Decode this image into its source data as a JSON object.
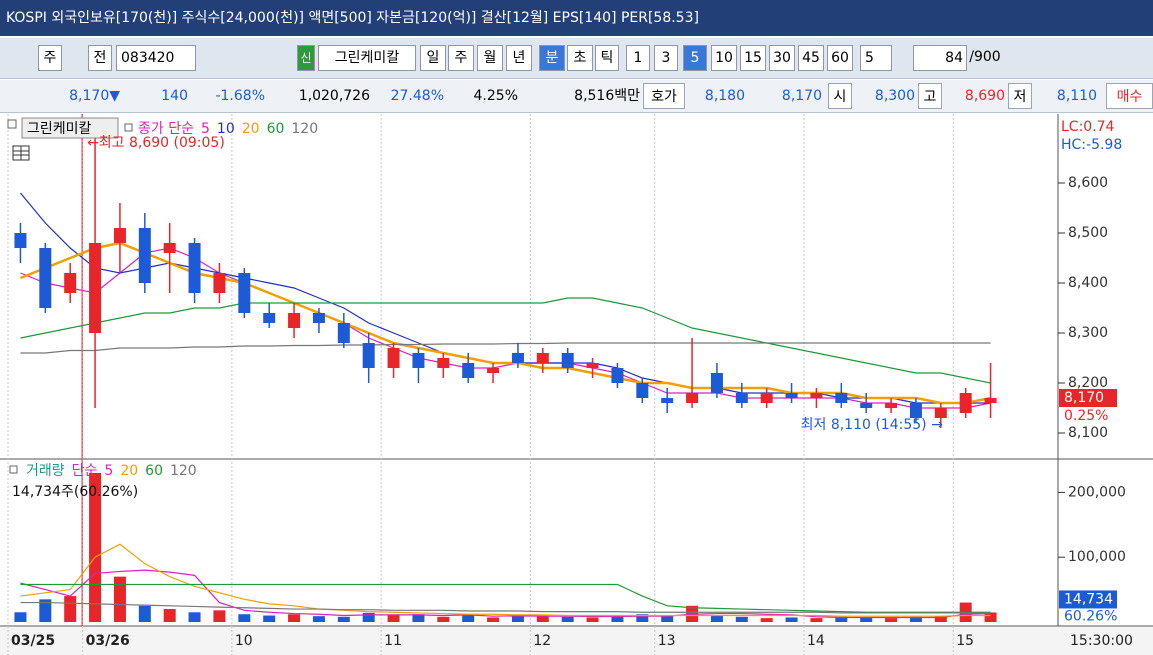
{
  "header": {
    "title": "KOSPI 외국인보유[170(천)] 주식수[24,000(천)] 액면[500] 자본금[120(억)] 결산[12월] EPS[140] PER[58.53]"
  },
  "toolbar": {
    "items": [
      "주",
      "전",
      "083420",
      "신",
      "그린케미칼",
      "일",
      "주",
      "월",
      "년",
      "분",
      "초",
      "틱",
      "1",
      "3",
      "5",
      "10",
      "15",
      "30",
      "45",
      "60",
      "5",
      "84",
      "/900"
    ]
  },
  "quote": {
    "items": [
      "8,170▼",
      "140",
      "-1.68%",
      "1,020,726",
      "27.48%",
      "4.25%",
      "8,516백만",
      "호가",
      "8,180",
      "8,170",
      "시",
      "8,300",
      "고",
      "8,690",
      "저",
      "8,110",
      "매수"
    ]
  },
  "chart_data": [
    {
      "type": "candlestick",
      "label": "그린케미칼",
      "legend_title": "종가 단순",
      "open": [
        8500,
        8470,
        8380,
        8300,
        8480,
        8510,
        8460,
        8480,
        8380,
        8420,
        8340,
        8310,
        8340,
        8320,
        8280,
        8230,
        8260,
        8230,
        8240,
        8220,
        8260,
        8240,
        8260,
        8230,
        8230,
        8200,
        8170,
        8160,
        8220,
        8180,
        8160,
        8180,
        8170,
        8180,
        8160,
        8150,
        8160,
        8130,
        8140,
        8160
      ],
      "high": [
        8520,
        8480,
        8440,
        8690,
        8560,
        8540,
        8520,
        8490,
        8440,
        8430,
        8360,
        8360,
        8350,
        8340,
        8300,
        8280,
        8270,
        8260,
        8260,
        8240,
        8280,
        8270,
        8270,
        8250,
        8240,
        8210,
        8190,
        8290,
        8240,
        8200,
        8190,
        8200,
        8190,
        8200,
        8180,
        8170,
        8170,
        8160,
        8190,
        8240
      ],
      "low": [
        8440,
        8340,
        8360,
        8150,
        8420,
        8380,
        8380,
        8360,
        8360,
        8330,
        8310,
        8290,
        8300,
        8270,
        8200,
        8210,
        8200,
        8210,
        8200,
        8200,
        8230,
        8220,
        8220,
        8210,
        8190,
        8160,
        8140,
        8150,
        8170,
        8150,
        8150,
        8160,
        8150,
        8150,
        8140,
        8140,
        8120,
        8110,
        8130,
        8130
      ],
      "close": [
        8470,
        8350,
        8420,
        8480,
        8510,
        8400,
        8480,
        8380,
        8420,
        8340,
        8320,
        8340,
        8320,
        8280,
        8230,
        8270,
        8230,
        8250,
        8210,
        8230,
        8240,
        8260,
        8230,
        8240,
        8200,
        8170,
        8160,
        8180,
        8180,
        8160,
        8180,
        8170,
        8180,
        8160,
        8150,
        8160,
        8130,
        8150,
        8180,
        8170
      ],
      "up_color": "#e8262a",
      "down_color": "#1d5bd6",
      "series": [
        {
          "name": "5",
          "color": "#e01fbf",
          "values": [
            8420,
            8400,
            8390,
            8380,
            8420,
            8460,
            8470,
            8450,
            8420,
            8400,
            8380,
            8360,
            8340,
            8320,
            8290,
            8270,
            8250,
            8240,
            8230,
            8230,
            8240,
            8240,
            8240,
            8230,
            8220,
            8200,
            8180,
            8180,
            8180,
            8170,
            8170,
            8170,
            8170,
            8170,
            8160,
            8160,
            8150,
            8150,
            8150,
            8160
          ]
        },
        {
          "name": "10",
          "color": "#2030c8",
          "values": [
            8580,
            8520,
            8470,
            8430,
            8420,
            8430,
            8440,
            8430,
            8420,
            8410,
            8400,
            8390,
            8370,
            8350,
            8320,
            8300,
            8280,
            8260,
            8250,
            8240,
            8240,
            8240,
            8240,
            8240,
            8230,
            8210,
            8200,
            8190,
            8190,
            8180,
            8180,
            8180,
            8180,
            8170,
            8170,
            8170,
            8160,
            8160,
            8160,
            8160
          ]
        },
        {
          "name": "20",
          "color": "#f0a000",
          "values": [
            8410,
            8430,
            8450,
            8470,
            8480,
            8460,
            8440,
            8420,
            8410,
            8400,
            8380,
            8360,
            8340,
            8320,
            8300,
            8280,
            8270,
            8260,
            8250,
            8240,
            8240,
            8230,
            8230,
            8220,
            8210,
            8200,
            8200,
            8190,
            8190,
            8190,
            8190,
            8180,
            8180,
            8180,
            8170,
            8170,
            8170,
            8160,
            8160,
            8170
          ]
        },
        {
          "name": "60",
          "color": "#1f9a3a",
          "values": [
            8290,
            8300,
            8310,
            8320,
            8330,
            8340,
            8340,
            8350,
            8350,
            8360,
            8360,
            8360,
            8360,
            8360,
            8360,
            8360,
            8360,
            8360,
            8360,
            8360,
            8360,
            8360,
            8370,
            8370,
            8360,
            8350,
            8330,
            8310,
            8300,
            8290,
            8280,
            8270,
            8260,
            8250,
            8240,
            8230,
            8220,
            8220,
            8210,
            8200
          ]
        },
        {
          "name": "120",
          "color": "#777777",
          "values": [
            8260,
            8260,
            8265,
            8265,
            8270,
            8270,
            8270,
            8272,
            8272,
            8274,
            8274,
            8275,
            8275,
            8276,
            8276,
            8277,
            8277,
            8278,
            8278,
            8278,
            8279,
            8279,
            8280,
            8280,
            8280,
            8280,
            8280,
            8280,
            8280,
            8280,
            8280,
            8280,
            8280,
            8280,
            8280,
            8280,
            8280,
            8280,
            8280,
            8280
          ]
        }
      ],
      "ylim": [
        8050,
        8730
      ],
      "yticks": [
        {
          "value": 8100,
          "label": "8,100"
        },
        {
          "value": 8200,
          "label": "8,200"
        },
        {
          "value": 8300,
          "label": "8,300"
        },
        {
          "value": 8400,
          "label": "8,400"
        },
        {
          "value": 8500,
          "label": "8,500"
        },
        {
          "value": 8600,
          "label": "8,600"
        }
      ],
      "annotations": [
        "←최고 8,690 (09:05)",
        "최저 8,110 (14:55) →"
      ],
      "indicators": [
        "LC:0.74",
        "HC:-5.98"
      ],
      "last_labels": [
        "8,170",
        "0.25%"
      ]
    },
    {
      "type": "bar",
      "label": "거래량",
      "legend_title": "단순",
      "categories": [
        "03/25",
        null,
        null,
        "03/26",
        null,
        null,
        null,
        null,
        null,
        "10",
        null,
        null,
        null,
        null,
        null,
        "11",
        null,
        null,
        null,
        null,
        null,
        "12",
        null,
        null,
        null,
        null,
        "13",
        null,
        null,
        null,
        null,
        null,
        "14",
        null,
        null,
        null,
        null,
        null,
        "15",
        null
      ],
      "values": [
        15000,
        35000,
        40000,
        230000,
        70000,
        25000,
        20000,
        15000,
        18000,
        12000,
        10000,
        12000,
        9000,
        8000,
        14000,
        10000,
        12000,
        8000,
        11000,
        7000,
        10000,
        9000,
        8000,
        7000,
        9000,
        12000,
        9000,
        25000,
        10000,
        8000,
        6000,
        7000,
        6000,
        8000,
        7000,
        6000,
        8000,
        9000,
        30000,
        14734
      ],
      "series": [
        {
          "name": "5",
          "color": "#e01fbf",
          "values": [
            60000,
            50000,
            40000,
            75000,
            78000,
            80000,
            77000,
            72000,
            30000,
            18000,
            15000,
            13000,
            12000,
            10000,
            11000,
            11000,
            11000,
            10000,
            11000,
            9000,
            9500,
            9000,
            9000,
            8500,
            8500,
            9000,
            9000,
            12000,
            13000,
            13000,
            12000,
            11000,
            8000,
            7000,
            7000,
            7000,
            7000,
            7000,
            12000,
            13000
          ]
        },
        {
          "name": "20",
          "color": "#f0a000",
          "values": [
            40000,
            45000,
            50000,
            100000,
            120000,
            90000,
            70000,
            55000,
            45000,
            35000,
            28000,
            25000,
            20000,
            18000,
            16000,
            15000,
            14000,
            13000,
            12000,
            12000,
            11000,
            11000,
            10000,
            10000,
            10000,
            10000,
            10000,
            10000,
            10000,
            10000,
            10000,
            10000,
            10000,
            9000,
            9000,
            9000,
            9000,
            9000,
            10000,
            10000
          ]
        },
        {
          "name": "60",
          "color": "#1f9a3a",
          "values": [
            58000,
            58000,
            58000,
            58000,
            58000,
            58000,
            58000,
            58000,
            58000,
            58000,
            58000,
            58000,
            58000,
            58000,
            58000,
            58000,
            58000,
            58000,
            58000,
            58000,
            58000,
            58000,
            58000,
            58000,
            58000,
            40000,
            25000,
            22000,
            21000,
            20000,
            19000,
            18000,
            17000,
            16000,
            15000,
            15000,
            15000,
            15000,
            15000,
            15000
          ]
        },
        {
          "name": "120",
          "color": "#777777",
          "values": [
            30000,
            30000,
            29000,
            28000,
            27000,
            26000,
            25000,
            24000,
            23000,
            22000,
            21000,
            20000,
            20000,
            19000,
            19000,
            18000,
            18000,
            18000,
            17000,
            17000,
            17000,
            16000,
            16000,
            16000,
            16000,
            15000,
            15000,
            15000,
            15000,
            15000,
            15000,
            15000,
            15000,
            14000,
            14000,
            14000,
            14000,
            14000,
            14000,
            14000
          ]
        }
      ],
      "ylim": [
        0,
        250000
      ],
      "yticks": [
        {
          "value": 100000,
          "label": "100,000"
        },
        {
          "value": 200000,
          "label": "200,000"
        }
      ],
      "summary": "14,734주(60.26%)",
      "last_labels": [
        "14,734",
        "60.26%"
      ],
      "time_label": "15:30:00"
    }
  ]
}
